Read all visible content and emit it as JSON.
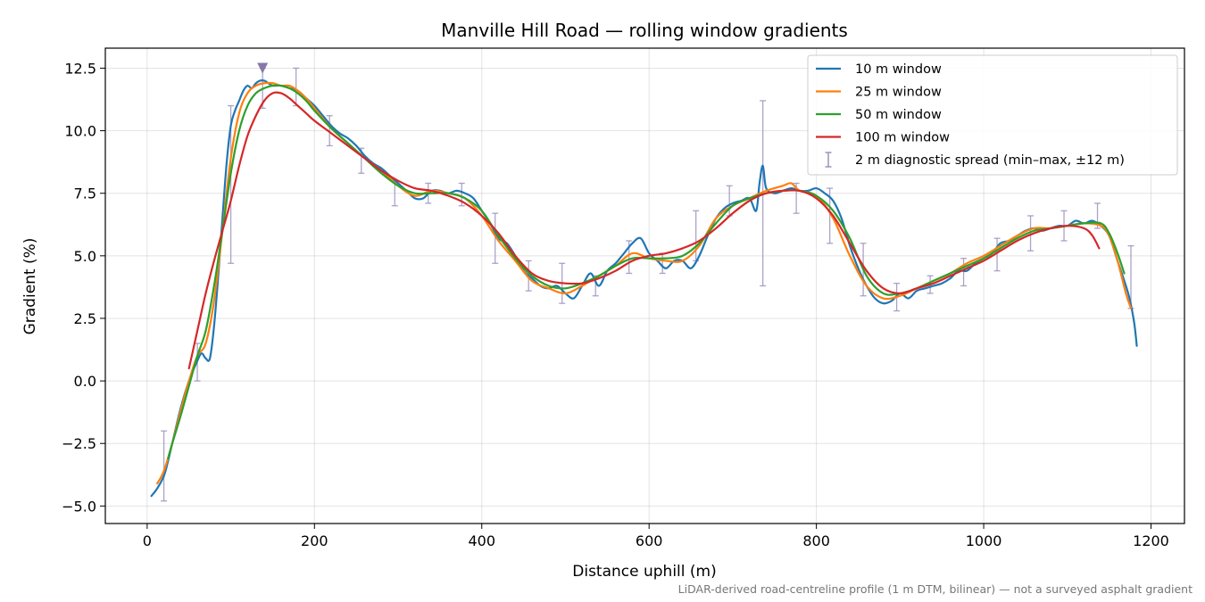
{
  "chart_data": {
    "type": "line",
    "title": "Manville Hill Road — rolling window gradients",
    "xlabel": "Distance uphill (m)",
    "ylabel": "Gradient (%)",
    "xlim": [
      -50,
      1240
    ],
    "ylim": [
      -5.7,
      13.3
    ],
    "xticks": [
      0,
      200,
      400,
      600,
      800,
      1000,
      1200
    ],
    "yticks": [
      -5.0,
      -2.5,
      0.0,
      2.5,
      5.0,
      7.5,
      10.0,
      12.5
    ],
    "xtick_labels": [
      "0",
      "200",
      "400",
      "600",
      "800",
      "1000",
      "1200"
    ],
    "ytick_labels": [
      "−5.0",
      "−2.5",
      "0.0",
      "2.5",
      "5.0",
      "7.5",
      "10.0",
      "12.5"
    ],
    "grid": true,
    "legend_position": "top-right",
    "marker": {
      "x": 138,
      "y": 12.5,
      "shape": "triangle-down",
      "color": "#8878aa"
    },
    "footnote": "LiDAR-derived road-centreline profile (1 m DTM, bilinear) — not a surveyed asphalt gradient",
    "series": [
      {
        "name": "10 m window",
        "color": "#1f77b4",
        "x": [
          5,
          12,
          20,
          25,
          30,
          40,
          50,
          60,
          65,
          70,
          75,
          80,
          85,
          90,
          95,
          100,
          105,
          110,
          115,
          120,
          125,
          130,
          135,
          140,
          145,
          150,
          160,
          170,
          180,
          190,
          200,
          210,
          220,
          230,
          240,
          250,
          260,
          270,
          280,
          290,
          300,
          310,
          320,
          330,
          340,
          350,
          360,
          370,
          380,
          390,
          400,
          410,
          420,
          430,
          440,
          450,
          460,
          470,
          480,
          490,
          500,
          510,
          520,
          530,
          540,
          550,
          560,
          570,
          580,
          590,
          600,
          610,
          620,
          630,
          640,
          650,
          660,
          670,
          680,
          690,
          700,
          710,
          720,
          728,
          732,
          736,
          740,
          750,
          760,
          770,
          780,
          790,
          800,
          810,
          820,
          830,
          840,
          850,
          860,
          870,
          880,
          890,
          900,
          910,
          920,
          930,
          940,
          950,
          960,
          970,
          980,
          990,
          1000,
          1010,
          1020,
          1030,
          1040,
          1050,
          1060,
          1070,
          1080,
          1090,
          1100,
          1110,
          1120,
          1130,
          1140,
          1150,
          1160,
          1170,
          1175,
          1180,
          1183
        ],
        "values": [
          -4.6,
          -4.3,
          -3.8,
          -3.2,
          -2.5,
          -1.1,
          0.0,
          0.8,
          1.1,
          0.9,
          0.9,
          2.2,
          4.2,
          6.5,
          8.7,
          10.2,
          10.8,
          11.2,
          11.6,
          11.8,
          11.7,
          11.9,
          12.0,
          12.0,
          11.9,
          11.8,
          11.8,
          11.7,
          11.6,
          11.3,
          11.0,
          10.6,
          10.2,
          9.9,
          9.7,
          9.4,
          9.0,
          8.7,
          8.5,
          8.2,
          7.9,
          7.6,
          7.3,
          7.3,
          7.6,
          7.6,
          7.5,
          7.6,
          7.5,
          7.3,
          6.8,
          6.3,
          5.7,
          5.5,
          5.0,
          4.4,
          4.1,
          3.8,
          3.7,
          3.8,
          3.5,
          3.3,
          3.8,
          4.3,
          3.8,
          4.4,
          4.7,
          5.1,
          5.5,
          5.7,
          5.1,
          4.8,
          4.5,
          4.8,
          4.8,
          4.5,
          5.0,
          5.8,
          6.5,
          6.9,
          7.1,
          7.2,
          7.3,
          6.8,
          7.9,
          8.6,
          7.7,
          7.5,
          7.6,
          7.7,
          7.6,
          7.6,
          7.7,
          7.5,
          7.2,
          6.5,
          5.4,
          4.5,
          3.8,
          3.3,
          3.1,
          3.2,
          3.5,
          3.3,
          3.6,
          3.7,
          3.8,
          3.9,
          4.1,
          4.4,
          4.4,
          4.7,
          4.9,
          5.1,
          5.5,
          5.6,
          5.8,
          6.0,
          6.1,
          6.0,
          6.1,
          6.2,
          6.2,
          6.4,
          6.3,
          6.4,
          6.2,
          5.8,
          4.8,
          3.8,
          3.2,
          2.3,
          1.4
        ]
      },
      {
        "name": "25 m window",
        "color": "#ff7f0e",
        "x": [
          12,
          20,
          30,
          40,
          50,
          60,
          70,
          80,
          90,
          100,
          110,
          120,
          130,
          140,
          150,
          160,
          170,
          180,
          190,
          200,
          220,
          240,
          260,
          280,
          300,
          320,
          340,
          360,
          380,
          400,
          420,
          440,
          460,
          480,
          500,
          520,
          540,
          560,
          580,
          600,
          620,
          640,
          660,
          680,
          700,
          720,
          740,
          760,
          770,
          780,
          800,
          820,
          840,
          860,
          880,
          900,
          920,
          940,
          960,
          980,
          1000,
          1020,
          1040,
          1060,
          1080,
          1100,
          1120,
          1140,
          1150,
          1160,
          1170,
          1176
        ],
        "values": [
          -4.1,
          -3.6,
          -2.5,
          -1.2,
          0.0,
          1.0,
          1.5,
          3.2,
          6.0,
          8.9,
          10.7,
          11.5,
          11.8,
          11.9,
          11.9,
          11.8,
          11.8,
          11.6,
          11.3,
          10.9,
          10.1,
          9.5,
          8.9,
          8.4,
          7.8,
          7.4,
          7.6,
          7.5,
          7.3,
          6.6,
          5.6,
          4.8,
          4.0,
          3.7,
          3.5,
          3.8,
          4.2,
          4.6,
          5.1,
          4.9,
          4.8,
          4.8,
          5.4,
          6.5,
          7.0,
          7.3,
          7.6,
          7.8,
          7.9,
          7.6,
          7.4,
          6.5,
          5.0,
          3.8,
          3.3,
          3.4,
          3.7,
          4.0,
          4.3,
          4.7,
          5.0,
          5.4,
          5.8,
          6.1,
          6.1,
          6.2,
          6.3,
          6.2,
          5.8,
          4.8,
          3.5,
          2.9
        ]
      },
      {
        "name": "50 m window",
        "color": "#2ca02c",
        "x": [
          25,
          30,
          40,
          50,
          60,
          70,
          80,
          90,
          100,
          110,
          120,
          130,
          140,
          150,
          160,
          170,
          180,
          190,
          200,
          220,
          240,
          260,
          280,
          300,
          320,
          340,
          360,
          380,
          400,
          420,
          440,
          460,
          480,
          500,
          520,
          540,
          560,
          580,
          600,
          620,
          640,
          660,
          680,
          700,
          720,
          740,
          760,
          780,
          800,
          820,
          840,
          860,
          880,
          900,
          920,
          940,
          960,
          980,
          1000,
          1020,
          1040,
          1060,
          1080,
          1100,
          1120,
          1140,
          1150,
          1160,
          1168
        ],
        "values": [
          -3.1,
          -2.5,
          -1.4,
          -0.2,
          1.0,
          2.0,
          3.8,
          6.0,
          8.3,
          10.0,
          11.0,
          11.5,
          11.7,
          11.8,
          11.8,
          11.7,
          11.5,
          11.2,
          10.8,
          10.1,
          9.5,
          8.9,
          8.3,
          7.8,
          7.5,
          7.5,
          7.5,
          7.3,
          6.8,
          5.8,
          4.9,
          4.2,
          3.8,
          3.7,
          3.9,
          4.2,
          4.6,
          4.9,
          4.9,
          4.9,
          5.0,
          5.5,
          6.3,
          7.0,
          7.3,
          7.5,
          7.6,
          7.6,
          7.4,
          6.8,
          5.7,
          4.2,
          3.5,
          3.5,
          3.7,
          4.0,
          4.3,
          4.6,
          4.9,
          5.3,
          5.7,
          6.0,
          6.1,
          6.2,
          6.3,
          6.3,
          5.9,
          5.1,
          4.3
        ]
      },
      {
        "name": "100 m window",
        "color": "#d62728",
        "x": [
          50,
          60,
          70,
          80,
          90,
          100,
          110,
          120,
          130,
          140,
          150,
          160,
          170,
          180,
          190,
          200,
          220,
          240,
          260,
          280,
          300,
          320,
          340,
          360,
          380,
          400,
          420,
          440,
          460,
          480,
          500,
          520,
          540,
          560,
          580,
          600,
          620,
          640,
          660,
          680,
          700,
          720,
          740,
          760,
          780,
          800,
          820,
          840,
          860,
          880,
          900,
          920,
          940,
          960,
          980,
          1000,
          1020,
          1040,
          1060,
          1080,
          1100,
          1120,
          1130,
          1138
        ],
        "values": [
          0.5,
          2.0,
          3.5,
          4.8,
          6.0,
          7.2,
          8.6,
          9.8,
          10.6,
          11.2,
          11.5,
          11.5,
          11.3,
          11.0,
          10.7,
          10.4,
          9.9,
          9.4,
          8.9,
          8.4,
          8.0,
          7.7,
          7.6,
          7.4,
          7.1,
          6.6,
          5.9,
          5.0,
          4.3,
          4.0,
          3.9,
          3.9,
          4.1,
          4.4,
          4.8,
          5.0,
          5.1,
          5.3,
          5.6,
          6.1,
          6.7,
          7.2,
          7.5,
          7.6,
          7.6,
          7.3,
          6.6,
          5.5,
          4.4,
          3.7,
          3.5,
          3.7,
          3.9,
          4.2,
          4.5,
          4.8,
          5.2,
          5.6,
          5.9,
          6.1,
          6.2,
          6.1,
          5.8,
          5.3
        ]
      },
      {
        "name": "2 m diagnostic spread (min–max, ±12 m)",
        "color": "#9e92be",
        "type": "errorbar",
        "x": [
          20,
          60,
          100,
          138,
          178,
          218,
          256,
          296,
          336,
          376,
          416,
          456,
          496,
          536,
          576,
          616,
          656,
          696,
          736,
          776,
          816,
          856,
          896,
          936,
          976,
          1016,
          1056,
          1096,
          1136,
          1176
        ],
        "low": [
          -4.8,
          0.0,
          4.7,
          10.9,
          11.0,
          9.4,
          8.3,
          7.0,
          7.1,
          7.0,
          4.7,
          3.6,
          3.1,
          3.4,
          4.3,
          4.3,
          4.8,
          6.6,
          3.8,
          6.7,
          5.5,
          3.4,
          2.8,
          3.5,
          3.8,
          4.4,
          5.2,
          5.6,
          6.1,
          2.9
        ],
        "high": [
          -2.0,
          1.5,
          11.0,
          12.5,
          12.5,
          10.6,
          9.3,
          8.0,
          7.9,
          7.9,
          6.7,
          4.8,
          4.7,
          4.2,
          5.6,
          5.1,
          6.8,
          7.8,
          11.2,
          7.9,
          7.7,
          5.5,
          3.9,
          4.2,
          4.9,
          5.7,
          6.6,
          6.8,
          7.1,
          5.4
        ]
      }
    ]
  }
}
